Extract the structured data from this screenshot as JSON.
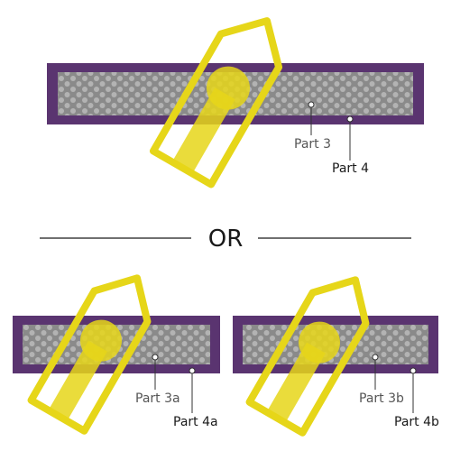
{
  "colors": {
    "frame": "#5a3470",
    "core": "#8a8a8a",
    "dots": "#b3b3b3",
    "tag": "#e6d619",
    "text": "#1a1a1a",
    "text_secondary": "#555555",
    "leader": "#333333"
  },
  "top_diagram": {
    "part_inner_label": "Part 3",
    "part_outer_label": "Part 4"
  },
  "separator": {
    "label": "OR"
  },
  "bottom_left_diagram": {
    "part_inner_label": "Part 3a",
    "part_outer_label": "Part 4a"
  },
  "bottom_right_diagram": {
    "part_inner_label": "Part 3b",
    "part_outer_label": "Part 4b"
  }
}
